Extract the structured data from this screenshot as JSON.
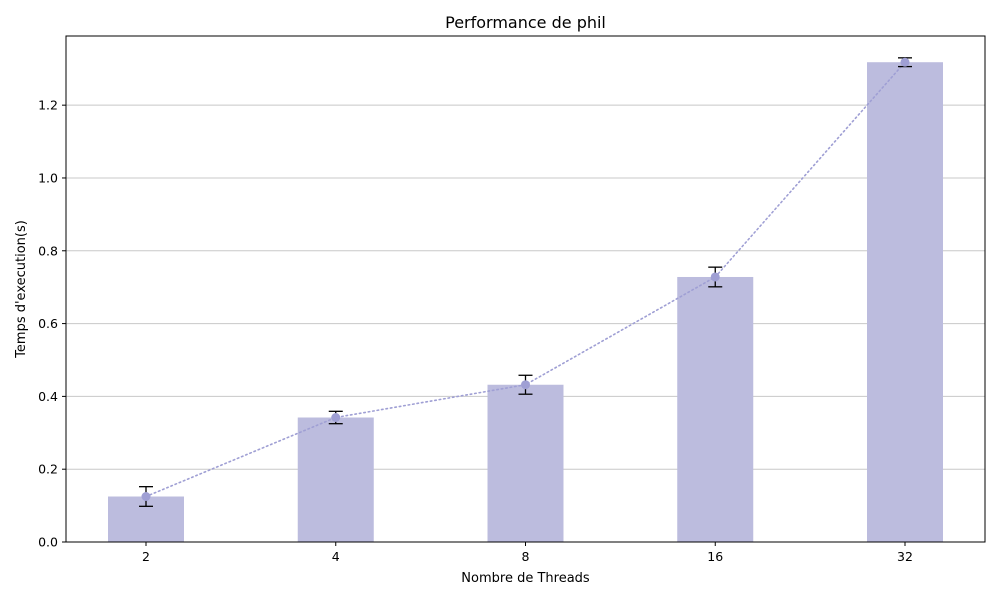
{
  "chart_data": {
    "type": "bar",
    "title": "Performance de phil",
    "xlabel": "Nombre de Threads",
    "ylabel": "Temps d'execution(s)",
    "categories": [
      "2",
      "4",
      "8",
      "16",
      "32"
    ],
    "values": [
      0.125,
      0.342,
      0.432,
      0.728,
      1.318
    ],
    "errors": [
      0.027,
      0.017,
      0.026,
      0.027,
      0.012
    ],
    "line_values": [
      0.125,
      0.342,
      0.432,
      0.728,
      1.318
    ],
    "ylim": [
      0,
      1.39
    ],
    "yticks": [
      0.0,
      0.2,
      0.4,
      0.6,
      0.8,
      1.0,
      1.2
    ],
    "ytick_labels": [
      "0.0",
      "0.2",
      "0.4",
      "0.6",
      "0.8",
      "1.0",
      "1.2"
    ],
    "grid": "y-only",
    "bar_color": "#bcbcde",
    "line_color": "#9f9fd4",
    "marker_color": "#9f9fd4",
    "errorbar_color": "#000000",
    "line_style": "dotted"
  }
}
